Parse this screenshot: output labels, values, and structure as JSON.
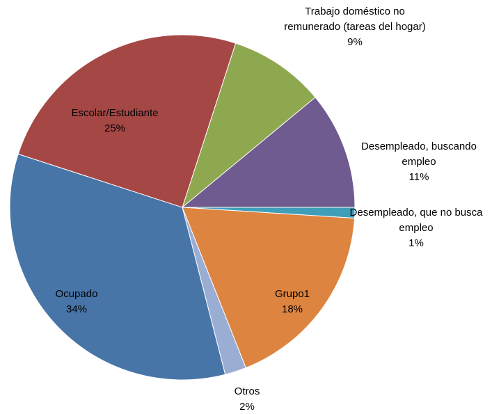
{
  "chart_data": {
    "type": "pie",
    "categories": [
      "Trabajo doméstico no remunerado (tareas del hogar)",
      "Desempleado, buscando empleo",
      "Desempleado, que no busca empleo",
      "Grupo1",
      "Otros",
      "Ocupado",
      "Escolar/Estudiante"
    ],
    "values": [
      9,
      11,
      1,
      18,
      2,
      34,
      25
    ],
    "value_labels": [
      "9%",
      "11%",
      "1%",
      "18%",
      "2%",
      "34%",
      "25%"
    ],
    "colors": [
      "#8ea84f",
      "#6f5b8f",
      "#3f9fb8",
      "#dd8440",
      "#9aaed4",
      "#4875a8",
      "#a54745"
    ]
  }
}
